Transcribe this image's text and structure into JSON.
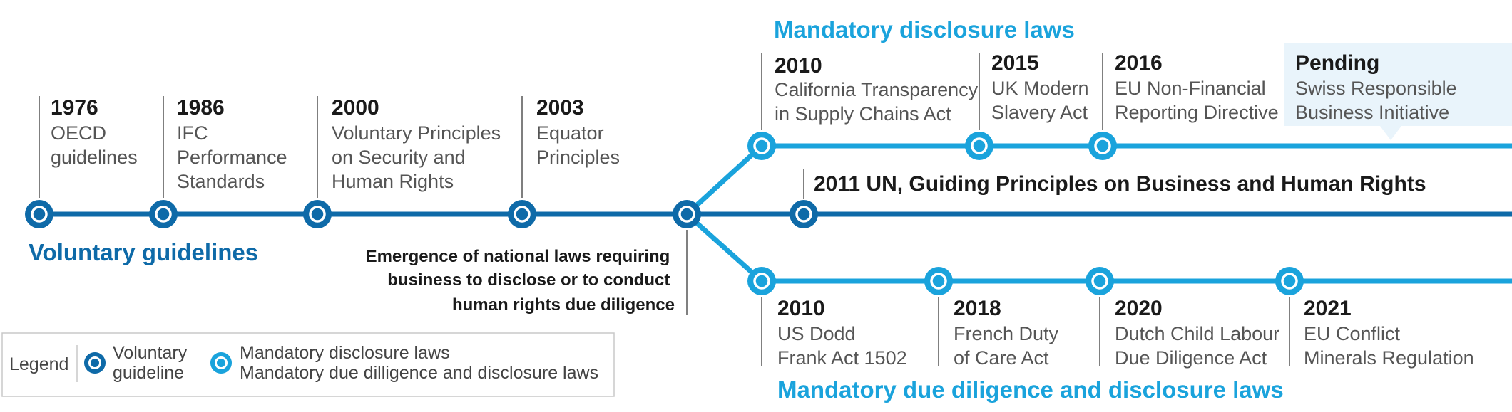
{
  "colors": {
    "voluntary": "#0e6aa8",
    "mandatory": "#1aa3dc",
    "pending_bg": "#e9f4fb",
    "stem": "#555555"
  },
  "voluntary_section_title": "Voluntary guidelines",
  "disclosure_section_title": "Mandatory disclosure laws",
  "due_diligence_section_title": "Mandatory due diligence and disclosure laws",
  "emergence_note": [
    "Emergence of national laws requiring",
    "business to disclose or to conduct",
    "human rights due diligence"
  ],
  "un_principles": "2011 UN, Guiding Principles on Business and Human Rights",
  "voluntary_events": [
    {
      "year": "1976",
      "lines": [
        "OECD",
        "guidelines"
      ]
    },
    {
      "year": "1986",
      "lines": [
        "IFC",
        "Performance",
        "Standards"
      ]
    },
    {
      "year": "2000",
      "lines": [
        "Voluntary Principles",
        "on Security and",
        "Human Rights"
      ]
    },
    {
      "year": "2003",
      "lines": [
        "Equator",
        "Principles"
      ]
    }
  ],
  "disclosure_events": [
    {
      "year": "2010",
      "lines": [
        "California Transparency",
        "in Supply Chains Act"
      ]
    },
    {
      "year": "2015",
      "lines": [
        "UK Modern",
        "Slavery Act"
      ]
    },
    {
      "year": "2016",
      "lines": [
        "EU Non-Financial",
        "Reporting Directive"
      ]
    },
    {
      "year": "Pending",
      "lines": [
        "Swiss Responsible",
        "Business Initiative"
      ]
    }
  ],
  "due_diligence_events": [
    {
      "year": "2010",
      "lines": [
        "US Dodd",
        "Frank Act 1502"
      ]
    },
    {
      "year": "2018",
      "lines": [
        "French Duty",
        "of Care Act"
      ]
    },
    {
      "year": "2020",
      "lines": [
        "Dutch Child Labour",
        "Due Diligence Act"
      ]
    },
    {
      "year": "2021",
      "lines": [
        "EU Conflict",
        "Minerals Regulation"
      ]
    }
  ],
  "legend": {
    "title": "Legend",
    "voluntary_label": [
      "Voluntary",
      "guideline"
    ],
    "mandatory_label": [
      "Mandatory disclosure laws",
      "Mandatory due dilligence and disclosure laws"
    ]
  }
}
